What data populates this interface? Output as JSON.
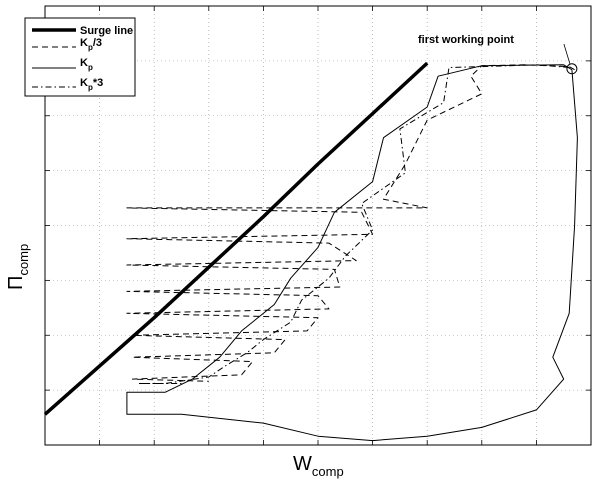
{
  "chart_data": {
    "type": "line",
    "title": "",
    "xlabel": {
      "main": "W",
      "sub": "comp"
    },
    "ylabel": {
      "main": "Π",
      "sub": "comp"
    },
    "xlim": [
      0,
      1
    ],
    "ylim": [
      0,
      1
    ],
    "x_tick_labels": [],
    "y_tick_labels": [],
    "grid": true,
    "legend_position": "top-left",
    "annotations": [
      {
        "text": "first working point",
        "x": 0.965,
        "y": 0.857
      }
    ],
    "series": [
      {
        "name": "Surge line",
        "legend_main": "Surge line",
        "legend_sub": "",
        "legend_suffix": "",
        "style": "thick-solid",
        "points": [
          [
            0,
            0.07
          ],
          [
            0.2,
            0.29
          ],
          [
            0.4,
            0.52
          ],
          [
            0.5,
            0.64
          ],
          [
            0.6,
            0.755
          ],
          [
            0.7,
            0.87
          ]
        ]
      },
      {
        "name": "K_p/3",
        "legend_main": "K",
        "legend_sub": "p",
        "legend_suffix": "/3",
        "style": "dashed",
        "points": [
          [
            0.97,
            0.855
          ],
          [
            0.96,
            0.862
          ],
          [
            0.88,
            0.866
          ],
          [
            0.8,
            0.864
          ],
          [
            0.78,
            0.84
          ],
          [
            0.8,
            0.8
          ],
          [
            0.7,
            0.74
          ],
          [
            0.66,
            0.64
          ],
          [
            0.62,
            0.56
          ],
          [
            0.7,
            0.54
          ],
          [
            0.15,
            0.54
          ],
          [
            0.58,
            0.53
          ],
          [
            0.6,
            0.48
          ],
          [
            0.15,
            0.47
          ],
          [
            0.52,
            0.46
          ],
          [
            0.57,
            0.42
          ],
          [
            0.15,
            0.41
          ],
          [
            0.53,
            0.4
          ],
          [
            0.54,
            0.36
          ],
          [
            0.15,
            0.35
          ],
          [
            0.5,
            0.34
          ],
          [
            0.52,
            0.31
          ],
          [
            0.15,
            0.3
          ],
          [
            0.5,
            0.29
          ],
          [
            0.48,
            0.26
          ],
          [
            0.16,
            0.25
          ],
          [
            0.44,
            0.24
          ],
          [
            0.42,
            0.21
          ],
          [
            0.16,
            0.2
          ],
          [
            0.38,
            0.19
          ],
          [
            0.36,
            0.16
          ],
          [
            0.16,
            0.15
          ],
          [
            0.3,
            0.145
          ]
        ]
      },
      {
        "name": "K_p",
        "legend_main": "K",
        "legend_sub": "p",
        "legend_suffix": "",
        "style": "solid",
        "points": [
          [
            0.965,
            0.855
          ],
          [
            0.95,
            0.866
          ],
          [
            0.8,
            0.864
          ],
          [
            0.72,
            0.84
          ],
          [
            0.7,
            0.77
          ],
          [
            0.62,
            0.7
          ],
          [
            0.6,
            0.6
          ],
          [
            0.53,
            0.53
          ],
          [
            0.5,
            0.45
          ],
          [
            0.45,
            0.38
          ],
          [
            0.42,
            0.32
          ],
          [
            0.36,
            0.26
          ],
          [
            0.32,
            0.2
          ],
          [
            0.27,
            0.15
          ],
          [
            0.22,
            0.12
          ],
          [
            0.15,
            0.12
          ],
          [
            0.15,
            0.07
          ],
          [
            0.25,
            0.07
          ],
          [
            0.4,
            0.05
          ],
          [
            0.5,
            0.02
          ],
          [
            0.6,
            0.01
          ],
          [
            0.7,
            0.02
          ],
          [
            0.8,
            0.04
          ],
          [
            0.9,
            0.08
          ],
          [
            0.95,
            0.15
          ],
          [
            0.93,
            0.2
          ],
          [
            0.96,
            0.3
          ],
          [
            0.97,
            0.5
          ],
          [
            0.975,
            0.7
          ],
          [
            0.965,
            0.855
          ]
        ]
      },
      {
        "name": "K_p*3",
        "legend_main": "K",
        "legend_sub": "p",
        "legend_suffix": "*3",
        "style": "dash-dot",
        "points": [
          [
            0.96,
            0.86
          ],
          [
            0.9,
            0.866
          ],
          [
            0.8,
            0.862
          ],
          [
            0.74,
            0.86
          ],
          [
            0.73,
            0.78
          ],
          [
            0.65,
            0.72
          ],
          [
            0.66,
            0.62
          ],
          [
            0.58,
            0.55
          ],
          [
            0.6,
            0.49
          ],
          [
            0.55,
            0.43
          ],
          [
            0.52,
            0.38
          ],
          [
            0.47,
            0.33
          ],
          [
            0.45,
            0.28
          ],
          [
            0.4,
            0.24
          ],
          [
            0.37,
            0.21
          ],
          [
            0.33,
            0.18
          ],
          [
            0.3,
            0.155
          ],
          [
            0.22,
            0.14
          ],
          [
            0.17,
            0.14
          ],
          [
            0.25,
            0.14
          ]
        ]
      }
    ]
  }
}
